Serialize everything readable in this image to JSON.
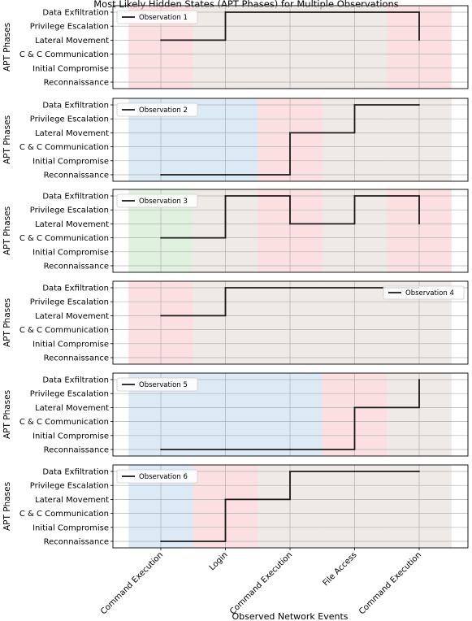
{
  "chart_data": {
    "type": "line",
    "step": true,
    "title": "Most Likely Hidden States (APT Phases) for Multiple Observations",
    "xlabel": "Observed Network Events",
    "ylabel": "APT Phases",
    "categories": [
      "Command Execution",
      "Login",
      "Command Execution",
      "File Access",
      "Command Execution"
    ],
    "phases": [
      "Reconnaissance",
      "Initial Compromise",
      "C & C Communication",
      "Lateral Movement",
      "Privilege Escalation",
      "Data Exfiltration"
    ],
    "grid": true,
    "shading_colors": {
      "red": "#f8c9cd",
      "gray": "#e3dcd7",
      "blue": "#c3dcee",
      "green": "#cde8cc"
    },
    "series": [
      {
        "name": "Observation 1",
        "values": [
          "Lateral Movement",
          "Data Exfiltration",
          "Data Exfiltration",
          "Data Exfiltration",
          "Lateral Movement"
        ],
        "shading": [
          "red",
          "gray",
          "gray",
          "gray",
          "red"
        ],
        "legend": "top-left"
      },
      {
        "name": "Observation 2",
        "values": [
          "Reconnaissance",
          "Reconnaissance",
          "Lateral Movement",
          "Data Exfiltration",
          "Data Exfiltration"
        ],
        "shading": [
          "blue",
          "blue",
          "red",
          "gray",
          "gray"
        ],
        "legend": "top-left"
      },
      {
        "name": "Observation 3",
        "values": [
          "C & C Communication",
          "Data Exfiltration",
          "Lateral Movement",
          "Data Exfiltration",
          "Lateral Movement"
        ],
        "shading": [
          "green",
          "gray",
          "red",
          "gray",
          "red"
        ],
        "legend": "top-left"
      },
      {
        "name": "Observation 4",
        "values": [
          "Lateral Movement",
          "Data Exfiltration",
          "Data Exfiltration",
          "Data Exfiltration",
          "Data Exfiltration"
        ],
        "shading": [
          "red",
          "gray",
          "gray",
          "gray",
          "gray"
        ],
        "legend": "top-right"
      },
      {
        "name": "Observation 5",
        "values": [
          "Reconnaissance",
          "Reconnaissance",
          "Reconnaissance",
          "Lateral Movement",
          "Data Exfiltration"
        ],
        "shading": [
          "blue",
          "blue",
          "blue",
          "red",
          "gray"
        ],
        "legend": "top-left"
      },
      {
        "name": "Observation 6",
        "values": [
          "Reconnaissance",
          "Lateral Movement",
          "Data Exfiltration",
          "Data Exfiltration",
          "Data Exfiltration"
        ],
        "shading": [
          "blue",
          "red",
          "gray",
          "gray",
          "gray"
        ],
        "legend": "top-left"
      }
    ]
  }
}
